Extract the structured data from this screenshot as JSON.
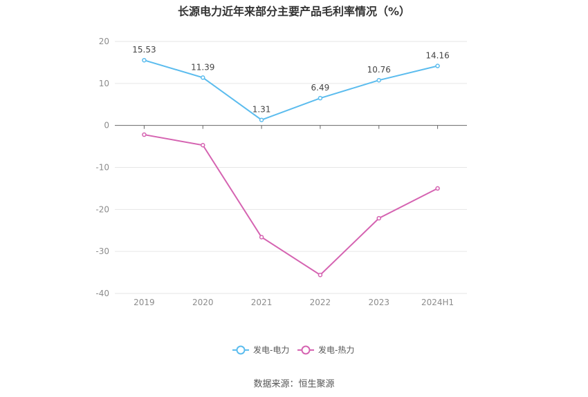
{
  "chart_data": {
    "type": "line",
    "title": "长源电力近年来部分主要产品毛利率情况（%）",
    "categories": [
      "2019",
      "2020",
      "2021",
      "2022",
      "2023",
      "2024H1"
    ],
    "series": [
      {
        "name": "发电-电力",
        "color": "#5bbcee",
        "values": [
          15.53,
          11.39,
          1.31,
          6.49,
          10.76,
          14.16
        ],
        "labels_shown": true
      },
      {
        "name": "发电-热力",
        "color": "#d563b1",
        "values": [
          -2.2,
          -4.7,
          -26.6,
          -35.6,
          -22.1,
          -15.0
        ],
        "labels_shown": false
      }
    ],
    "ylim": [
      -40,
      20
    ],
    "yticks": [
      20,
      10,
      0,
      -10,
      -20,
      -30,
      -40
    ],
    "xlabel": "",
    "ylabel": "",
    "grid": true,
    "legend_position": "bottom-center",
    "source": "数据来源：恒生聚源"
  }
}
